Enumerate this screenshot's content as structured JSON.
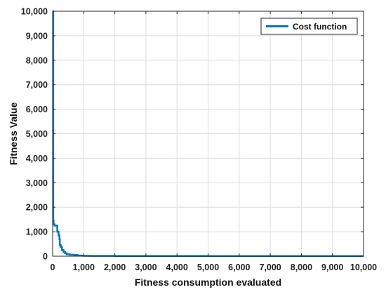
{
  "chart_data": {
    "type": "line",
    "title": "",
    "xlabel": "Fitness consumption evaluated",
    "ylabel": "Fitness Value",
    "xlim": [
      0,
      10000
    ],
    "ylim": [
      0,
      10000
    ],
    "x_ticks": [
      0,
      1000,
      2000,
      3000,
      4000,
      5000,
      6000,
      7000,
      8000,
      9000,
      10000
    ],
    "y_ticks": [
      0,
      1000,
      2000,
      3000,
      4000,
      5000,
      6000,
      7000,
      8000,
      9000,
      10000
    ],
    "x_tick_labels": [
      "0",
      "1,000",
      "2,000",
      "3,000",
      "4,000",
      "5,000",
      "6,000",
      "7,000",
      "8,000",
      "9,000",
      "10,000"
    ],
    "y_tick_labels": [
      "0",
      "1,000",
      "2,000",
      "3,000",
      "4,000",
      "5,000",
      "6,000",
      "7,000",
      "8,000",
      "9,000",
      "10,000"
    ],
    "grid": true,
    "legend_position": "top-right",
    "line_style": "step",
    "series": [
      {
        "name": "Cost function",
        "color": "#0072BD",
        "x": [
          0,
          20,
          30,
          60,
          150,
          190,
          220,
          230,
          260,
          300,
          350,
          400,
          450,
          550,
          700,
          800,
          900,
          1000,
          1200,
          1500,
          2000,
          3000,
          5000,
          7000,
          10000
        ],
        "y": [
          10000,
          1450,
          1300,
          1250,
          1000,
          850,
          700,
          450,
          380,
          250,
          180,
          120,
          80,
          60,
          45,
          30,
          20,
          15,
          12,
          10,
          8,
          6,
          5,
          5,
          5
        ]
      }
    ]
  }
}
